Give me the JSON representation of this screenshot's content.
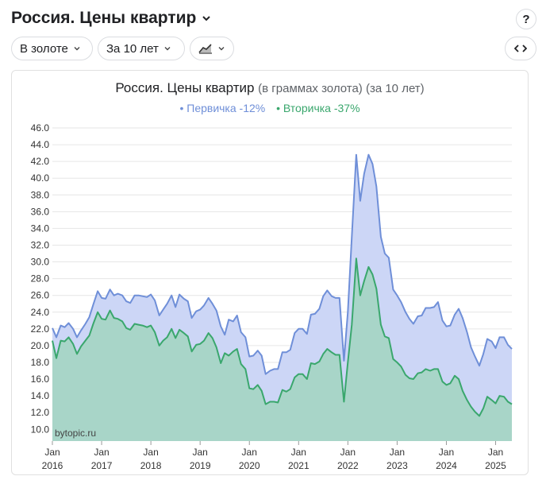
{
  "header": {
    "title": "Россия. Цены квартир"
  },
  "toolbar": {
    "gold_label": "В золоте",
    "period_label": "За 10 лет"
  },
  "help_label": "?",
  "chart_data": {
    "type": "area",
    "title": "Россия. Цены квартир",
    "subtitle": "(в граммах золота) (за 10 лет)",
    "watermark": "bytopic.ru",
    "ylim": [
      8.6,
      46.0
    ],
    "yticks": [
      "46.0",
      "44.0",
      "42.0",
      "40.0",
      "38.0",
      "36.0",
      "34.0",
      "32.0",
      "30.0",
      "28.0",
      "26.0",
      "24.0",
      "22.0",
      "20.0",
      "18.0",
      "16.0",
      "14.0",
      "12.0",
      "10.0"
    ],
    "xticks": [
      {
        "top": "Jan",
        "bottom": "2016",
        "x": 2016.0
      },
      {
        "top": "Jan",
        "bottom": "2017",
        "x": 2017.0
      },
      {
        "top": "Jan",
        "bottom": "2018",
        "x": 2018.0
      },
      {
        "top": "Jan",
        "bottom": "2019",
        "x": 2019.0
      },
      {
        "top": "Jan",
        "bottom": "2020",
        "x": 2020.0
      },
      {
        "top": "Jan",
        "bottom": "2021",
        "x": 2021.0
      },
      {
        "top": "Jan",
        "bottom": "2022",
        "x": 2022.0
      },
      {
        "top": "Jan",
        "bottom": "2023",
        "x": 2023.0
      },
      {
        "top": "Jan",
        "bottom": "2024",
        "x": 2024.0
      },
      {
        "top": "Jan",
        "bottom": "2025",
        "x": 2025.0
      }
    ],
    "grid": true,
    "series": [
      {
        "name": "Первичка",
        "legend": "Первичка -12%",
        "color": "#6f8fd8",
        "fill": "#ccd6f6",
        "points": [
          [
            2016.0,
            22.1
          ],
          [
            2016.08,
            21.0
          ],
          [
            2016.17,
            22.4
          ],
          [
            2016.25,
            22.2
          ],
          [
            2016.33,
            22.7
          ],
          [
            2016.42,
            22.0
          ],
          [
            2016.5,
            21.0
          ],
          [
            2016.58,
            21.8
          ],
          [
            2016.67,
            22.6
          ],
          [
            2016.75,
            23.4
          ],
          [
            2016.83,
            24.9
          ],
          [
            2016.92,
            26.5
          ],
          [
            2017.0,
            25.7
          ],
          [
            2017.08,
            25.6
          ],
          [
            2017.17,
            26.7
          ],
          [
            2017.25,
            26.0
          ],
          [
            2017.33,
            26.2
          ],
          [
            2017.42,
            26.0
          ],
          [
            2017.5,
            25.3
          ],
          [
            2017.58,
            25.1
          ],
          [
            2017.67,
            26.0
          ],
          [
            2017.75,
            26.0
          ],
          [
            2017.83,
            25.9
          ],
          [
            2017.92,
            25.8
          ],
          [
            2018.0,
            26.1
          ],
          [
            2018.08,
            25.4
          ],
          [
            2018.17,
            23.6
          ],
          [
            2018.25,
            24.3
          ],
          [
            2018.33,
            25.0
          ],
          [
            2018.42,
            26.0
          ],
          [
            2018.5,
            24.6
          ],
          [
            2018.58,
            26.1
          ],
          [
            2018.67,
            25.6
          ],
          [
            2018.75,
            25.3
          ],
          [
            2018.83,
            23.3
          ],
          [
            2018.92,
            24.1
          ],
          [
            2019.0,
            24.3
          ],
          [
            2019.08,
            24.8
          ],
          [
            2019.17,
            25.7
          ],
          [
            2019.25,
            25.0
          ],
          [
            2019.33,
            24.2
          ],
          [
            2019.42,
            22.3
          ],
          [
            2019.5,
            21.3
          ],
          [
            2019.58,
            23.1
          ],
          [
            2019.67,
            22.9
          ],
          [
            2019.75,
            23.6
          ],
          [
            2019.83,
            21.6
          ],
          [
            2019.92,
            21.0
          ],
          [
            2020.0,
            18.7
          ],
          [
            2020.08,
            18.8
          ],
          [
            2020.17,
            19.4
          ],
          [
            2020.25,
            18.8
          ],
          [
            2020.33,
            16.6
          ],
          [
            2020.42,
            17.0
          ],
          [
            2020.5,
            17.2
          ],
          [
            2020.58,
            17.2
          ],
          [
            2020.67,
            19.2
          ],
          [
            2020.75,
            19.2
          ],
          [
            2020.83,
            19.5
          ],
          [
            2020.92,
            21.5
          ],
          [
            2021.0,
            22.0
          ],
          [
            2021.08,
            22.0
          ],
          [
            2021.17,
            21.4
          ],
          [
            2021.25,
            23.7
          ],
          [
            2021.33,
            23.8
          ],
          [
            2021.42,
            24.4
          ],
          [
            2021.5,
            25.9
          ],
          [
            2021.58,
            26.6
          ],
          [
            2021.67,
            25.9
          ],
          [
            2021.75,
            25.7
          ],
          [
            2021.83,
            25.7
          ],
          [
            2021.92,
            18.2
          ],
          [
            2022.0,
            24.0
          ],
          [
            2022.08,
            33.0
          ],
          [
            2022.17,
            42.8
          ],
          [
            2022.25,
            37.3
          ],
          [
            2022.33,
            40.5
          ],
          [
            2022.42,
            42.8
          ],
          [
            2022.5,
            41.7
          ],
          [
            2022.58,
            39.0
          ],
          [
            2022.67,
            33.0
          ],
          [
            2022.75,
            31.0
          ],
          [
            2022.83,
            30.5
          ],
          [
            2022.92,
            26.7
          ],
          [
            2023.0,
            26.0
          ],
          [
            2023.08,
            25.2
          ],
          [
            2023.17,
            24.0
          ],
          [
            2023.25,
            23.2
          ],
          [
            2023.33,
            22.6
          ],
          [
            2023.42,
            23.5
          ],
          [
            2023.5,
            23.6
          ],
          [
            2023.58,
            24.5
          ],
          [
            2023.67,
            24.5
          ],
          [
            2023.75,
            24.6
          ],
          [
            2023.83,
            25.2
          ],
          [
            2023.92,
            23.0
          ],
          [
            2024.0,
            22.3
          ],
          [
            2024.08,
            22.4
          ],
          [
            2024.17,
            23.7
          ],
          [
            2024.25,
            24.4
          ],
          [
            2024.33,
            23.3
          ],
          [
            2024.42,
            21.6
          ],
          [
            2024.5,
            19.8
          ],
          [
            2024.58,
            18.7
          ],
          [
            2024.67,
            17.6
          ],
          [
            2024.75,
            19.0
          ],
          [
            2024.83,
            20.8
          ],
          [
            2024.92,
            20.5
          ],
          [
            2025.0,
            19.7
          ],
          [
            2025.08,
            21.0
          ],
          [
            2025.17,
            21.0
          ],
          [
            2025.25,
            20.1
          ],
          [
            2025.33,
            19.6
          ]
        ]
      },
      {
        "name": "Вторичка",
        "legend": "Вторичка -37%",
        "color": "#3aa76d",
        "fill": "#a8d5c8",
        "points": [
          [
            2016.0,
            20.6
          ],
          [
            2016.08,
            18.5
          ],
          [
            2016.17,
            20.6
          ],
          [
            2016.25,
            20.5
          ],
          [
            2016.33,
            21.0
          ],
          [
            2016.42,
            20.2
          ],
          [
            2016.5,
            19.0
          ],
          [
            2016.58,
            19.9
          ],
          [
            2016.67,
            20.6
          ],
          [
            2016.75,
            21.2
          ],
          [
            2016.83,
            22.6
          ],
          [
            2016.92,
            24.0
          ],
          [
            2017.0,
            23.2
          ],
          [
            2017.08,
            23.1
          ],
          [
            2017.17,
            24.2
          ],
          [
            2017.25,
            23.3
          ],
          [
            2017.33,
            23.2
          ],
          [
            2017.42,
            22.9
          ],
          [
            2017.5,
            22.1
          ],
          [
            2017.58,
            21.9
          ],
          [
            2017.67,
            22.6
          ],
          [
            2017.75,
            22.5
          ],
          [
            2017.83,
            22.4
          ],
          [
            2017.92,
            22.2
          ],
          [
            2018.0,
            22.4
          ],
          [
            2018.08,
            21.6
          ],
          [
            2018.17,
            20.0
          ],
          [
            2018.25,
            20.6
          ],
          [
            2018.33,
            21.0
          ],
          [
            2018.42,
            22.0
          ],
          [
            2018.5,
            20.9
          ],
          [
            2018.58,
            21.9
          ],
          [
            2018.67,
            21.5
          ],
          [
            2018.75,
            21.1
          ],
          [
            2018.83,
            19.3
          ],
          [
            2018.92,
            20.1
          ],
          [
            2019.0,
            20.2
          ],
          [
            2019.08,
            20.6
          ],
          [
            2019.17,
            21.5
          ],
          [
            2019.25,
            20.9
          ],
          [
            2019.33,
            19.8
          ],
          [
            2019.42,
            17.9
          ],
          [
            2019.5,
            19.1
          ],
          [
            2019.58,
            18.8
          ],
          [
            2019.67,
            19.3
          ],
          [
            2019.75,
            19.6
          ],
          [
            2019.83,
            17.8
          ],
          [
            2019.92,
            17.2
          ],
          [
            2020.0,
            14.9
          ],
          [
            2020.08,
            14.8
          ],
          [
            2020.17,
            15.3
          ],
          [
            2020.25,
            14.6
          ],
          [
            2020.33,
            13.0
          ],
          [
            2020.42,
            13.3
          ],
          [
            2020.5,
            13.3
          ],
          [
            2020.58,
            13.2
          ],
          [
            2020.67,
            14.7
          ],
          [
            2020.75,
            14.5
          ],
          [
            2020.83,
            14.8
          ],
          [
            2020.92,
            16.2
          ],
          [
            2021.0,
            16.6
          ],
          [
            2021.08,
            16.6
          ],
          [
            2021.17,
            16.0
          ],
          [
            2021.25,
            17.9
          ],
          [
            2021.33,
            17.8
          ],
          [
            2021.42,
            18.1
          ],
          [
            2021.5,
            19.0
          ],
          [
            2021.58,
            19.6
          ],
          [
            2021.67,
            19.2
          ],
          [
            2021.75,
            18.9
          ],
          [
            2021.83,
            18.9
          ],
          [
            2021.92,
            13.3
          ],
          [
            2022.0,
            18.0
          ],
          [
            2022.08,
            22.5
          ],
          [
            2022.17,
            30.4
          ],
          [
            2022.25,
            26.0
          ],
          [
            2022.33,
            27.7
          ],
          [
            2022.42,
            29.4
          ],
          [
            2022.5,
            28.5
          ],
          [
            2022.58,
            26.8
          ],
          [
            2022.67,
            22.5
          ],
          [
            2022.75,
            21.1
          ],
          [
            2022.83,
            20.9
          ],
          [
            2022.92,
            18.4
          ],
          [
            2023.0,
            18.0
          ],
          [
            2023.08,
            17.5
          ],
          [
            2023.17,
            16.5
          ],
          [
            2023.25,
            16.1
          ],
          [
            2023.33,
            16.0
          ],
          [
            2023.42,
            16.7
          ],
          [
            2023.5,
            16.8
          ],
          [
            2023.58,
            17.2
          ],
          [
            2023.67,
            17.0
          ],
          [
            2023.75,
            17.2
          ],
          [
            2023.83,
            17.2
          ],
          [
            2023.92,
            15.7
          ],
          [
            2024.0,
            15.3
          ],
          [
            2024.08,
            15.5
          ],
          [
            2024.17,
            16.4
          ],
          [
            2024.25,
            16.0
          ],
          [
            2024.33,
            14.6
          ],
          [
            2024.42,
            13.5
          ],
          [
            2024.5,
            12.7
          ],
          [
            2024.58,
            12.1
          ],
          [
            2024.67,
            11.6
          ],
          [
            2024.75,
            12.5
          ],
          [
            2024.83,
            13.9
          ],
          [
            2024.92,
            13.5
          ],
          [
            2025.0,
            13.1
          ],
          [
            2025.08,
            14.0
          ],
          [
            2025.17,
            13.9
          ],
          [
            2025.25,
            13.3
          ],
          [
            2025.33,
            13.0
          ]
        ]
      }
    ]
  }
}
